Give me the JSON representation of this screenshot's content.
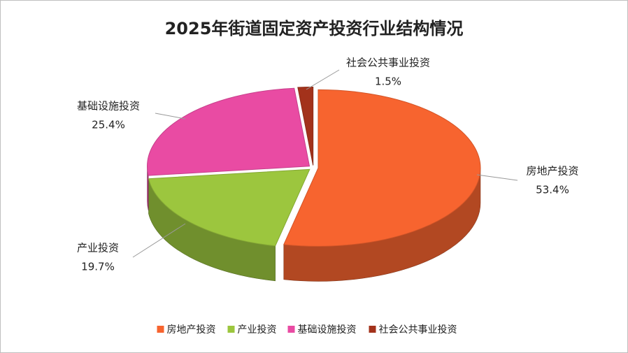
{
  "chart_data": {
    "type": "pie",
    "title": "2025年街道固定资产投资行业结构情况",
    "categories": [
      "房地产投资",
      "产业投资",
      "基础设施投资",
      "社会公共事业投资"
    ],
    "values": [
      53.4,
      19.7,
      25.4,
      1.5
    ],
    "value_labels": [
      "53.4%",
      "19.7%",
      "25.4%",
      "1.5%"
    ],
    "colors": [
      "#f7642f",
      "#9cc63e",
      "#e94ba3",
      "#a3321b"
    ],
    "legend": "bottom"
  }
}
